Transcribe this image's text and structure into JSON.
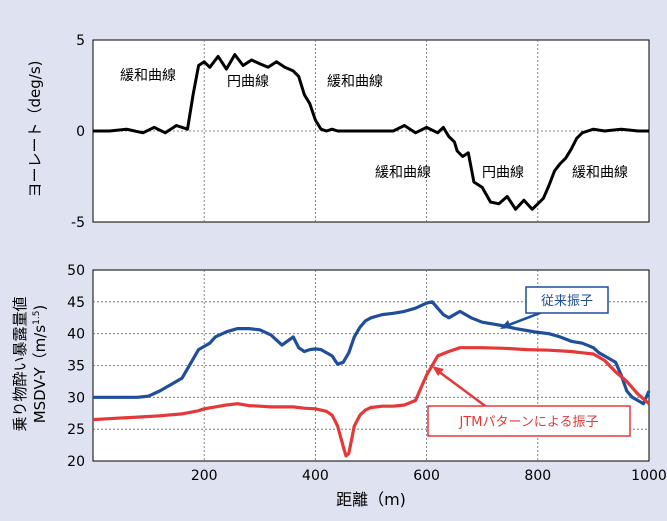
{
  "chart_data": [
    {
      "type": "line",
      "ylabel": "ヨーレート（deg/s)",
      "xlim": [
        0,
        1000
      ],
      "ylim": [
        -5,
        5
      ],
      "yticks": [
        "5",
        "0",
        "-5"
      ],
      "xticks": [
        200,
        400,
        600,
        800,
        1000
      ],
      "grid": true,
      "annotations": [
        "緩和曲線",
        "円曲線",
        "緩和曲線",
        "緩和曲線",
        "円曲線",
        "緩和曲線"
      ],
      "series": [
        {
          "color": "#000000",
          "x": [
            0,
            30,
            60,
            90,
            110,
            130,
            150,
            170,
            180,
            190,
            200,
            210,
            225,
            240,
            255,
            270,
            285,
            300,
            315,
            330,
            345,
            360,
            370,
            380,
            390,
            400,
            410,
            420,
            430,
            440,
            460,
            500,
            540,
            560,
            580,
            600,
            620,
            630,
            640,
            650,
            655,
            665,
            675,
            685,
            700,
            715,
            730,
            745,
            760,
            775,
            790,
            800,
            810,
            820,
            830,
            840,
            850,
            860,
            870,
            880,
            890,
            900,
            920,
            950,
            980,
            1000
          ],
          "y": [
            0,
            0,
            0.1,
            -0.1,
            0.2,
            -0.1,
            0.3,
            0.1,
            2.0,
            3.6,
            3.8,
            3.5,
            4.1,
            3.4,
            4.2,
            3.6,
            3.9,
            3.7,
            3.5,
            3.8,
            3.5,
            3.3,
            3.0,
            2.0,
            1.5,
            0.6,
            0.1,
            0,
            0.1,
            0,
            0,
            0,
            0,
            0.3,
            -0.1,
            0.2,
            -0.1,
            0.2,
            -0.3,
            -0.6,
            -1.1,
            -1.4,
            -1.2,
            -2.8,
            -3.1,
            -3.9,
            -4.0,
            -3.6,
            -4.3,
            -3.8,
            -4.3,
            -4.0,
            -3.7,
            -3.0,
            -2.2,
            -1.8,
            -1.5,
            -1.0,
            -0.4,
            -0.1,
            0,
            0.1,
            0,
            0.1,
            0,
            0
          ]
        }
      ]
    },
    {
      "type": "line",
      "ylabel": "乗り物酔い暴露量値 MSDV-Y（m/s1.5)",
      "xlabel": "距離（m)",
      "xlim": [
        0,
        1000
      ],
      "ylim": [
        20,
        50
      ],
      "yticks": [
        50,
        45,
        40,
        35,
        30,
        25,
        20
      ],
      "xticks": [
        200,
        400,
        600,
        800,
        1000
      ],
      "grid": true,
      "series": [
        {
          "name": "従来振子",
          "color": "#1f4e9a",
          "x": [
            0,
            40,
            80,
            100,
            120,
            140,
            160,
            170,
            180,
            190,
            200,
            210,
            220,
            240,
            260,
            280,
            300,
            320,
            340,
            360,
            370,
            380,
            390,
            400,
            410,
            420,
            430,
            440,
            450,
            460,
            470,
            480,
            490,
            500,
            520,
            540,
            560,
            580,
            600,
            610,
            620,
            630,
            640,
            660,
            680,
            700,
            720,
            740,
            760,
            780,
            800,
            820,
            840,
            860,
            880,
            900,
            910,
            920,
            930,
            940,
            950,
            960,
            970,
            980,
            990,
            1000
          ],
          "y": [
            30,
            30,
            30,
            30.2,
            31,
            32,
            33,
            34.5,
            36,
            37.5,
            38,
            38.5,
            39.5,
            40.3,
            40.8,
            40.8,
            40.6,
            39.8,
            38.2,
            39.5,
            37.8,
            37.2,
            37.5,
            37.6,
            37.5,
            37,
            36.5,
            35.2,
            35.5,
            37,
            39.5,
            41,
            42,
            42.5,
            43,
            43.2,
            43.5,
            44,
            44.8,
            45,
            44,
            43,
            42.5,
            43.5,
            42.5,
            41.8,
            41.5,
            41.2,
            40.8,
            40.5,
            40.2,
            40,
            39.5,
            38.8,
            38.5,
            37.8,
            37,
            36.5,
            36,
            35.5,
            33.5,
            31,
            30,
            29.5,
            29,
            31
          ]
        },
        {
          "name": "JTMパターンによる振子",
          "color": "#e53939",
          "x": [
            0,
            40,
            80,
            120,
            160,
            190,
            200,
            220,
            240,
            260,
            280,
            300,
            320,
            340,
            360,
            380,
            400,
            420,
            430,
            440,
            450,
            455,
            460,
            470,
            480,
            490,
            500,
            520,
            540,
            560,
            580,
            590,
            600,
            610,
            620,
            640,
            660,
            700,
            740,
            780,
            820,
            860,
            880,
            900,
            920,
            940,
            960,
            980,
            1000
          ],
          "y": [
            26.5,
            26.7,
            26.9,
            27.1,
            27.4,
            27.9,
            28.2,
            28.5,
            28.8,
            29.0,
            28.7,
            28.6,
            28.5,
            28.5,
            28.5,
            28.3,
            28.2,
            27.8,
            27.2,
            25.5,
            22.3,
            20.8,
            21.2,
            25.5,
            27.2,
            28,
            28.4,
            28.6,
            28.6,
            28.8,
            29.5,
            31.5,
            33.5,
            35,
            36.5,
            37.2,
            37.8,
            37.8,
            37.7,
            37.5,
            37.4,
            37.2,
            37,
            36.8,
            35.8,
            34,
            32.5,
            30.5,
            29
          ]
        }
      ]
    }
  ]
}
